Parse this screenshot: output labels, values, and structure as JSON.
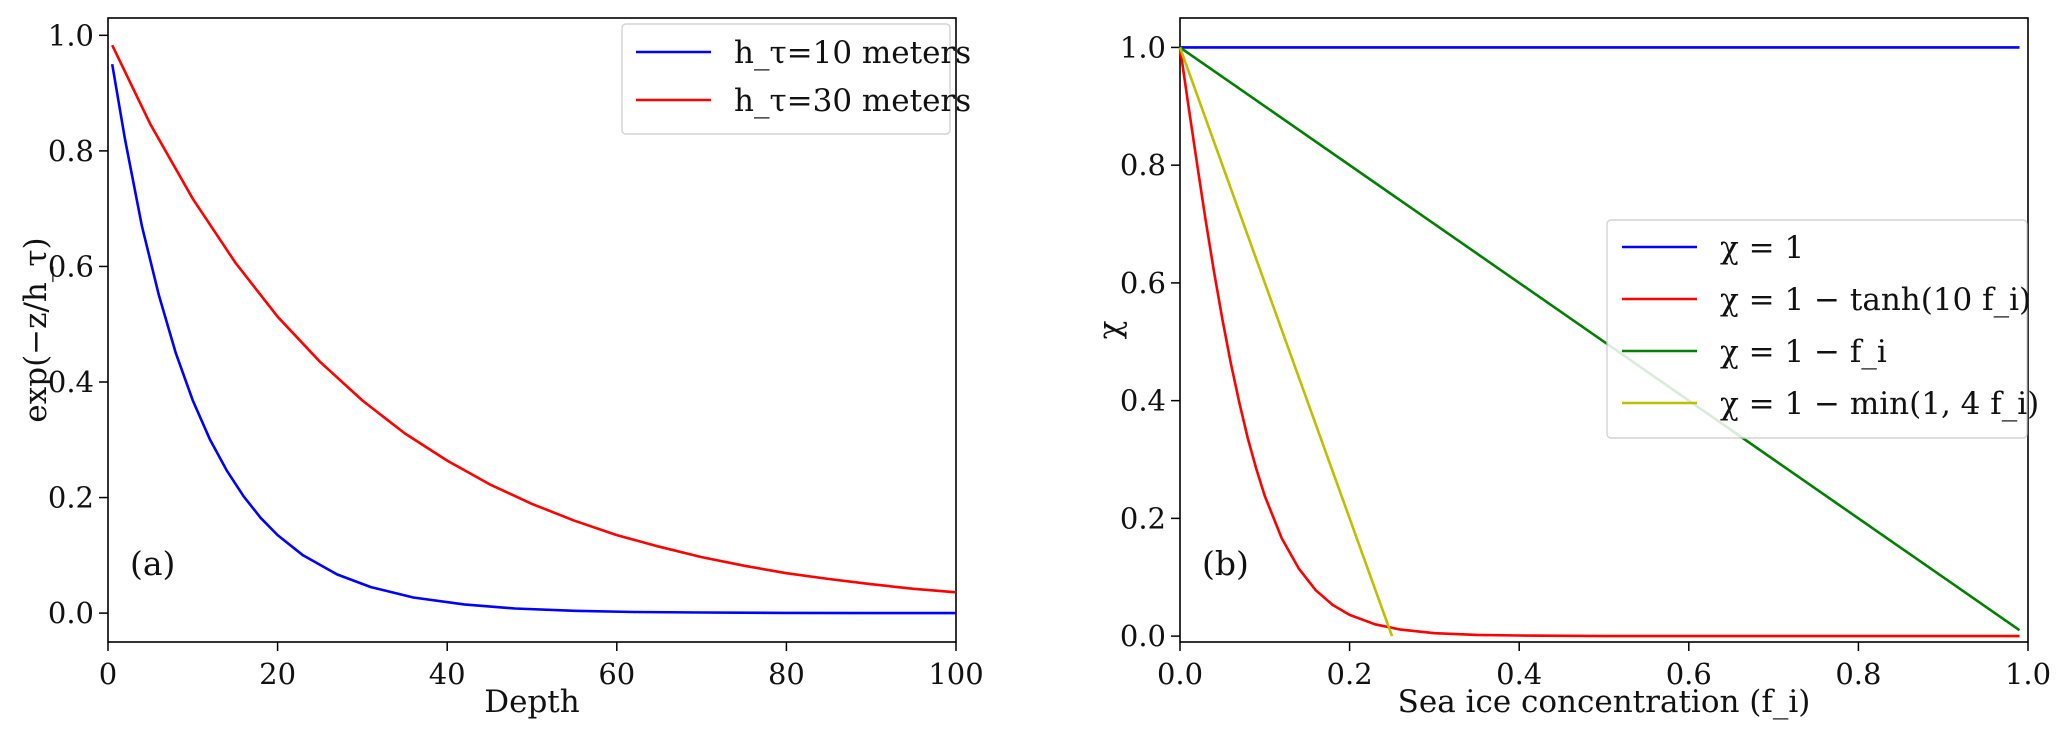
{
  "chart_data": [
    {
      "type": "line",
      "panel_label": "(a)",
      "xlabel": "Depth",
      "ylabel": "exp(−z/h_τ)",
      "xlim": [
        0,
        100
      ],
      "ylim": [
        -0.05,
        1.03
      ],
      "xticks": [
        0,
        20,
        40,
        60,
        80,
        100
      ],
      "yticks": [
        0.0,
        0.2,
        0.4,
        0.6,
        0.8,
        1.0
      ],
      "xtick_labels": [
        "0",
        "20",
        "40",
        "60",
        "80",
        "100"
      ],
      "ytick_labels": [
        "0.0",
        "0.2",
        "0.4",
        "0.6",
        "0.8",
        "1.0"
      ],
      "grid": false,
      "legend_position": "top-right",
      "series": [
        {
          "name": "h_τ=10 meters",
          "color": "#0000ff",
          "x": [
            0.5,
            2,
            4,
            6,
            8,
            10,
            12,
            14,
            16,
            18,
            20,
            23,
            27,
            31,
            36,
            42,
            48,
            55,
            62,
            70,
            80,
            90,
            100
          ],
          "y": [
            0.95,
            0.82,
            0.67,
            0.55,
            0.45,
            0.368,
            0.301,
            0.247,
            0.202,
            0.165,
            0.135,
            0.1,
            0.067,
            0.045,
            0.027,
            0.015,
            0.008,
            0.004,
            0.002,
            0.001,
            0.0003,
            0.0001,
            5e-05
          ]
        },
        {
          "name": "h_τ=30 meters",
          "color": "#ff0000",
          "x": [
            0.5,
            5,
            10,
            15,
            20,
            25,
            30,
            35,
            40,
            45,
            50,
            55,
            60,
            65,
            70,
            75,
            80,
            85,
            90,
            95,
            100
          ],
          "y": [
            0.983,
            0.846,
            0.717,
            0.607,
            0.513,
            0.435,
            0.368,
            0.311,
            0.264,
            0.223,
            0.189,
            0.16,
            0.135,
            0.115,
            0.097,
            0.082,
            0.069,
            0.059,
            0.05,
            0.042,
            0.036
          ]
        }
      ]
    },
    {
      "type": "line",
      "panel_label": "(b)",
      "xlabel": "Sea ice concentration (f_i)",
      "ylabel": "χ",
      "xlim": [
        0,
        1
      ],
      "ylim": [
        -0.01,
        1.05
      ],
      "xticks": [
        0,
        0.2,
        0.4,
        0.6,
        0.8,
        1.0
      ],
      "yticks": [
        0.0,
        0.2,
        0.4,
        0.6,
        0.8,
        1.0
      ],
      "xtick_labels": [
        "0.0",
        "0.2",
        "0.4",
        "0.6",
        "0.8",
        "1.0"
      ],
      "ytick_labels": [
        "0.0",
        "0.2",
        "0.4",
        "0.6",
        "0.8",
        "1.0"
      ],
      "grid": false,
      "legend_position": "center-right",
      "series": [
        {
          "name": "χ = 1",
          "color": "#0000ff",
          "x": [
            0,
            0.99
          ],
          "y": [
            1,
            1
          ]
        },
        {
          "name": "χ = 1 − tanh(10 f_i)",
          "color": "#ff0000",
          "x": [
            0,
            0.01,
            0.02,
            0.03,
            0.04,
            0.05,
            0.06,
            0.07,
            0.08,
            0.09,
            0.1,
            0.12,
            0.14,
            0.16,
            0.18,
            0.2,
            0.23,
            0.26,
            0.3,
            0.35,
            0.4,
            0.5,
            0.6,
            0.8,
            0.99
          ],
          "y": [
            1.0,
            0.9,
            0.803,
            0.709,
            0.62,
            0.538,
            0.463,
            0.396,
            0.336,
            0.284,
            0.238,
            0.166,
            0.115,
            0.078,
            0.053,
            0.036,
            0.02,
            0.011,
            0.005,
            0.002,
            0.001,
            0.0001,
            0.0,
            0.0,
            0.0
          ]
        },
        {
          "name": "χ = 1 − f_i",
          "color": "#008000",
          "x": [
            0,
            0.99
          ],
          "y": [
            1,
            0.01
          ]
        },
        {
          "name": "χ = 1 − min(1, 4 f_i)",
          "color": "#bfbf00",
          "x": [
            0,
            0.25
          ],
          "y": [
            1,
            0
          ]
        }
      ]
    }
  ]
}
